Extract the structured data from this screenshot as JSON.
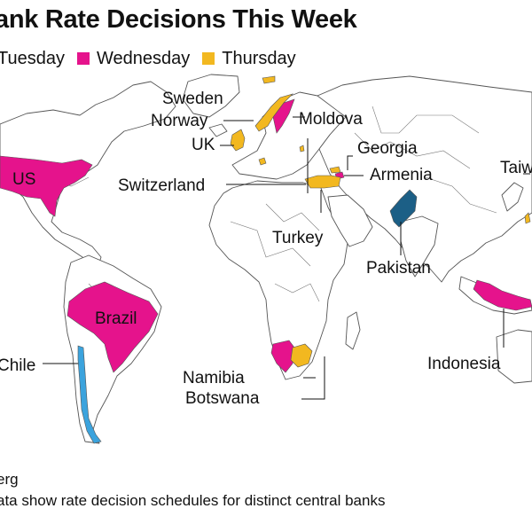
{
  "header": {
    "title": "ank Rate Decisions This Week"
  },
  "legend": {
    "items": [
      {
        "label": "Tuesday",
        "color": "#3ba3dd"
      },
      {
        "label": "Wednesday",
        "color": "#e5138c"
      },
      {
        "label": "Thursday",
        "color": "#f2b820"
      }
    ]
  },
  "map": {
    "land_color": "#ffffff",
    "border_color": "#555555",
    "country_labels": {
      "sweden": "Sweden",
      "norway": "Norway",
      "moldova": "Moldova",
      "uk": "UK",
      "georgia": "Georgia",
      "armenia": "Armenia",
      "switzerland": "Switzerland",
      "us": "US",
      "turkey": "Turkey",
      "pakistan": "Pakistan",
      "brazil": "Brazil",
      "chile": "Chile",
      "indonesia": "Indonesia",
      "taiwan": "Taiw",
      "namibia": "Namibia",
      "botswana": "Botswana"
    },
    "highlights": {
      "tuesday": [
        "Chile",
        "Pakistan"
      ],
      "wednesday": [
        "US",
        "Brazil",
        "Sweden",
        "Armenia",
        "Namibia",
        "Indonesia"
      ],
      "thursday": [
        "Norway",
        "UK",
        "Switzerland",
        "Turkey",
        "Moldova",
        "Georgia",
        "Botswana",
        "Taiwan"
      ]
    }
  },
  "footer": {
    "source": "erg",
    "note": "ata show rate decision schedules for distinct central banks"
  }
}
